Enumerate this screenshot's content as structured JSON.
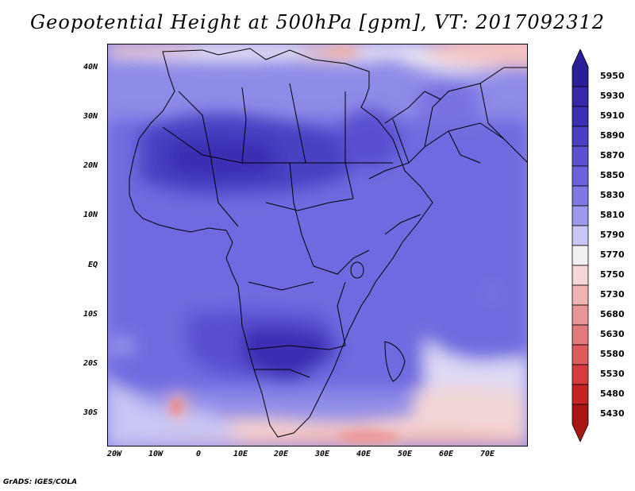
{
  "title": "Geopotential Height at 500hPa [gpm], VT: 2017092312",
  "credit": "GrADS: IGES/COLA",
  "map": {
    "region": "Africa",
    "lon_range": [
      -22,
      80
    ],
    "lat_range": [
      -37,
      45
    ],
    "lat_ticks": [
      "40N",
      "30N",
      "20N",
      "10N",
      "EQ",
      "10S",
      "20S",
      "30S"
    ],
    "lon_ticks": [
      "20W",
      "10W",
      "0",
      "10E",
      "20E",
      "30E",
      "40E",
      "50E",
      "60E",
      "70E"
    ]
  },
  "colorbar": {
    "labels": [
      "5950",
      "5930",
      "5910",
      "5890",
      "5870",
      "5850",
      "5830",
      "5810",
      "5790",
      "5770",
      "5750",
      "5730",
      "5680",
      "5630",
      "5580",
      "5530",
      "5480",
      "5430"
    ],
    "colors": [
      "#2a1f99",
      "#3628a8",
      "#3b2fb3",
      "#4a3fc2",
      "#5a50d0",
      "#6a63dc",
      "#7f79e4",
      "#9d99ec",
      "#c8c6f4",
      "#f3f0f3",
      "#f6d6d6",
      "#f0b4b4",
      "#e89696",
      "#e27a7a",
      "#dc5c5c",
      "#d63c3c",
      "#c62424",
      "#a81616"
    ]
  }
}
